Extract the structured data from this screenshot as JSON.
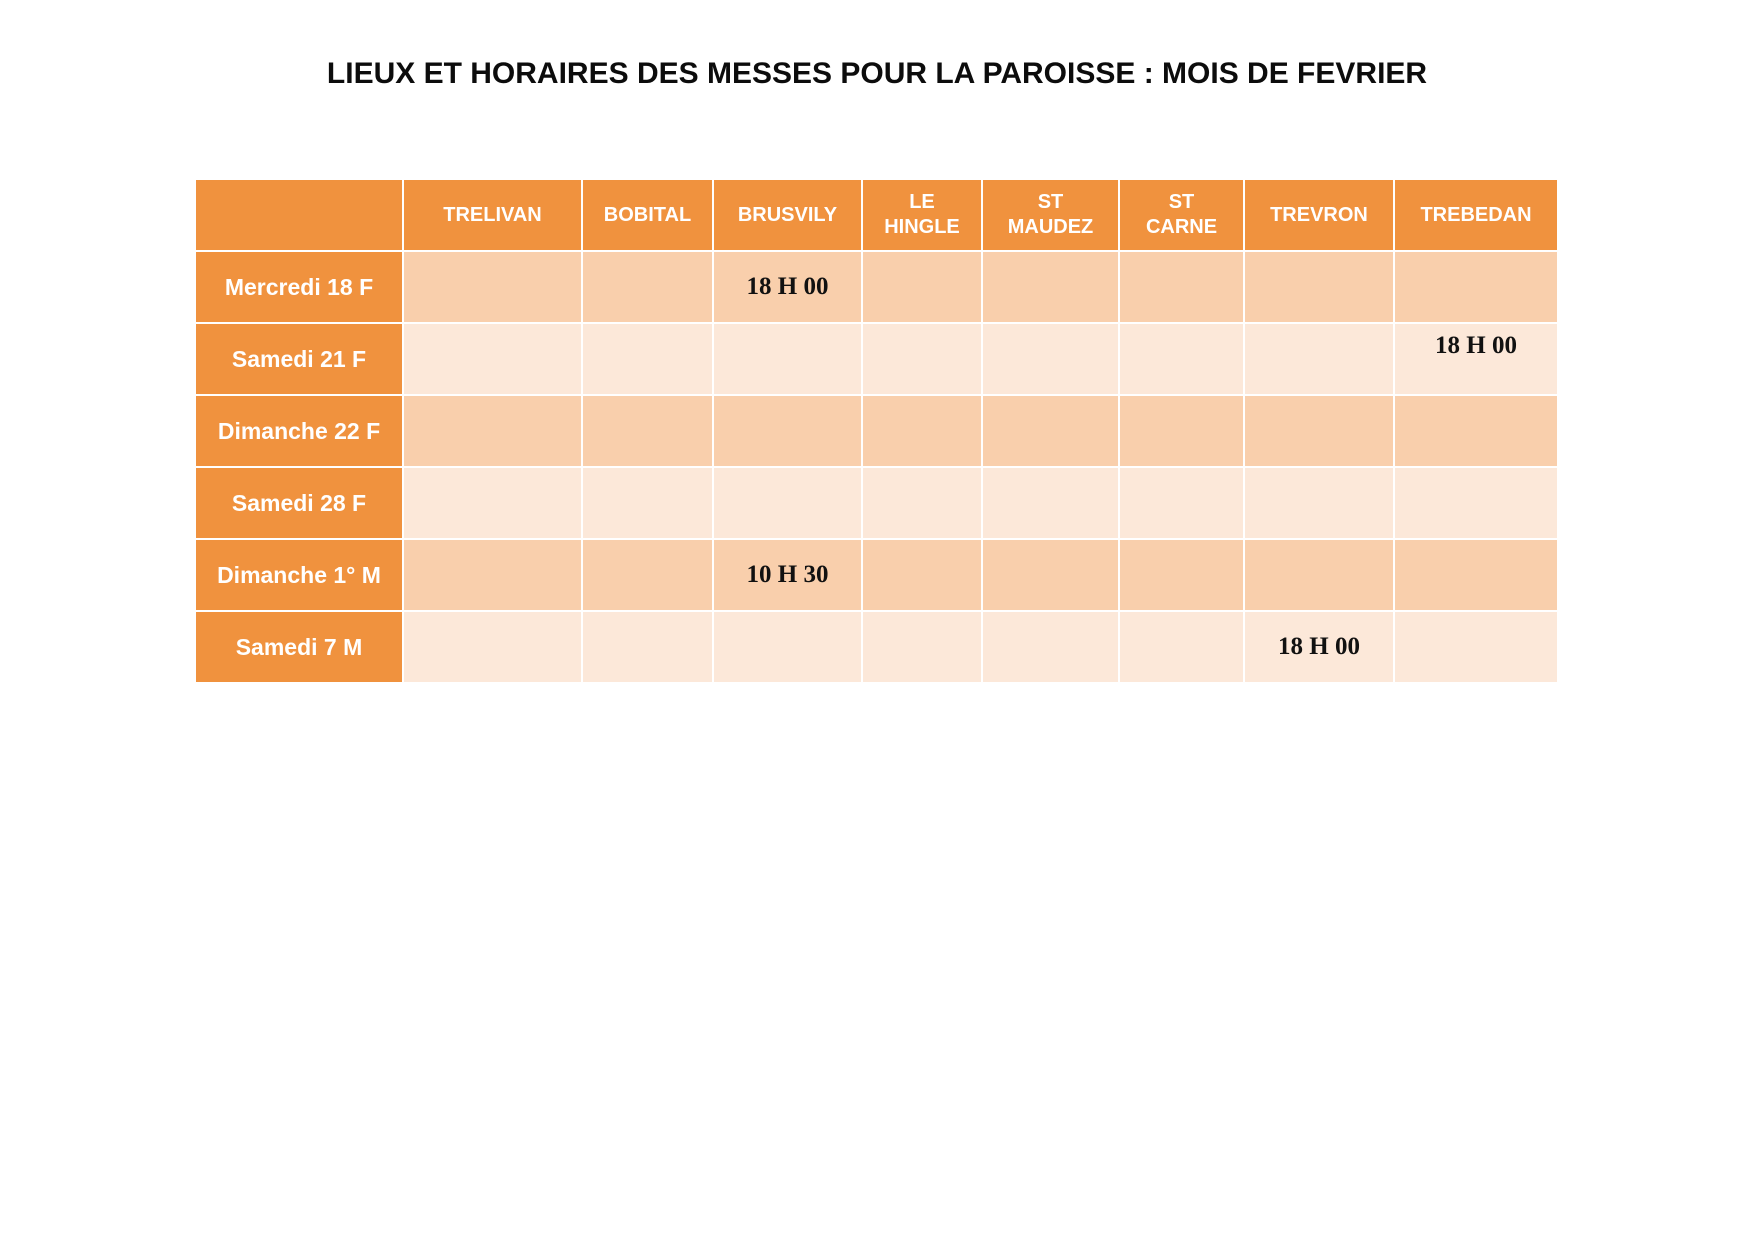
{
  "title": "LIEUX ET HORAIRES DES MESSES POUR LA PAROISSE : MOIS DE FEVRIER",
  "colors": {
    "header_bg": "#F0923E",
    "row_band_dark": "#F9CFAC",
    "row_band_light": "#FCE8D9",
    "header_text": "#FFFFFF",
    "value_text": "#111111",
    "grid_line": "#FFFFFF",
    "page_bg": "#FFFFFF"
  },
  "table": {
    "columns": [
      "TRELIVAN",
      "BOBITAL",
      "BRUSVILY",
      "LE\nHINGLE",
      "ST\nMAUDEZ",
      "ST\nCARNE",
      "TREVRON",
      "TREBEDAN"
    ],
    "rows": [
      {
        "label": "Mercredi 18 F",
        "cells": [
          "",
          "",
          "18 H 00",
          "",
          "",
          "",
          "",
          ""
        ]
      },
      {
        "label": "Samedi 21 F",
        "cells": [
          "",
          "",
          "",
          "",
          "",
          "",
          "",
          "18 H 00"
        ]
      },
      {
        "label": "Dimanche 22 F",
        "cells": [
          "",
          "",
          "",
          "",
          "",
          "",
          "",
          ""
        ]
      },
      {
        "label": "Samedi 28 F",
        "cells": [
          "",
          "",
          "",
          "",
          "",
          "",
          "",
          ""
        ]
      },
      {
        "label": "Dimanche 1° M",
        "cells": [
          "",
          "",
          "10 H 30",
          "",
          "",
          "",
          "",
          ""
        ]
      },
      {
        "label": "Samedi 7 M",
        "cells": [
          "",
          "",
          "",
          "",
          "",
          "",
          "18 H 00",
          ""
        ]
      }
    ]
  }
}
